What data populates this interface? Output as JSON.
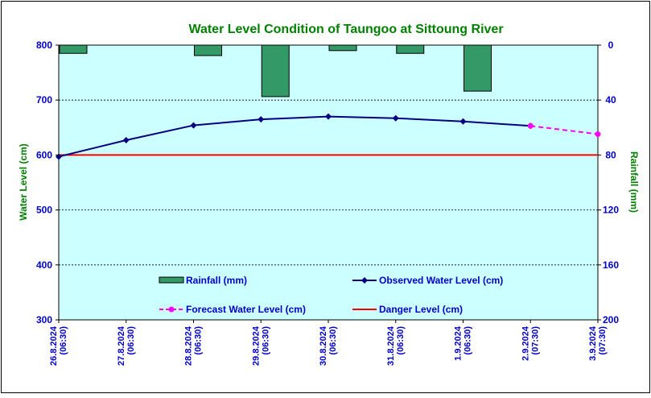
{
  "chart_data": {
    "type": "line",
    "title": "Water Level Condition of Taungoo at  Sittoung River",
    "ylabel": "Water Level (cm)",
    "y2label": "Rainfall (mm)",
    "ylim": [
      300,
      800
    ],
    "y_ticks": [
      300,
      400,
      500,
      600,
      700,
      800
    ],
    "y2lim": [
      0,
      200
    ],
    "y2_reversed": true,
    "y2_ticks": [
      0,
      40,
      80,
      120,
      160,
      200
    ],
    "grid": true,
    "categories": [
      "26.8.2024\n(06:30)",
      "27.8.2024\n(06:30)",
      "28.8.2024\n(06:30)",
      "29.8.2024\n(06:30)",
      "30.8.2024\n(06:30)",
      "31.8.2024\n(06:30)",
      "1.9.2024\n(06:30)",
      "2.9.2024\n(07:30)",
      "3.9.2024\n(07:30)"
    ],
    "series": [
      {
        "name": "Rainfall (mm)",
        "type": "bar",
        "axis": "y2",
        "color": "#339966",
        "values": [
          6,
          null,
          7.6,
          37.5,
          4,
          6,
          33.5,
          null,
          null
        ]
      },
      {
        "name": "Observed Water Level (cm)",
        "type": "line",
        "axis": "y",
        "color": "#000080",
        "values": [
          597,
          627,
          654,
          665,
          670,
          667,
          661,
          653,
          null
        ]
      },
      {
        "name": "Forecast Water Level (cm)",
        "type": "line",
        "axis": "y",
        "color": "#ff00ff",
        "dashed": true,
        "values": [
          null,
          null,
          null,
          null,
          null,
          null,
          null,
          653,
          638
        ]
      },
      {
        "name": "Danger Level (cm)",
        "type": "hline",
        "axis": "y",
        "color": "#ff0000",
        "value": 600
      }
    ],
    "legend_position": "bottom-inside",
    "colors": {
      "plot_bg": "#ccffff",
      "title": "#008000",
      "axis_text": "#0000cc"
    }
  }
}
